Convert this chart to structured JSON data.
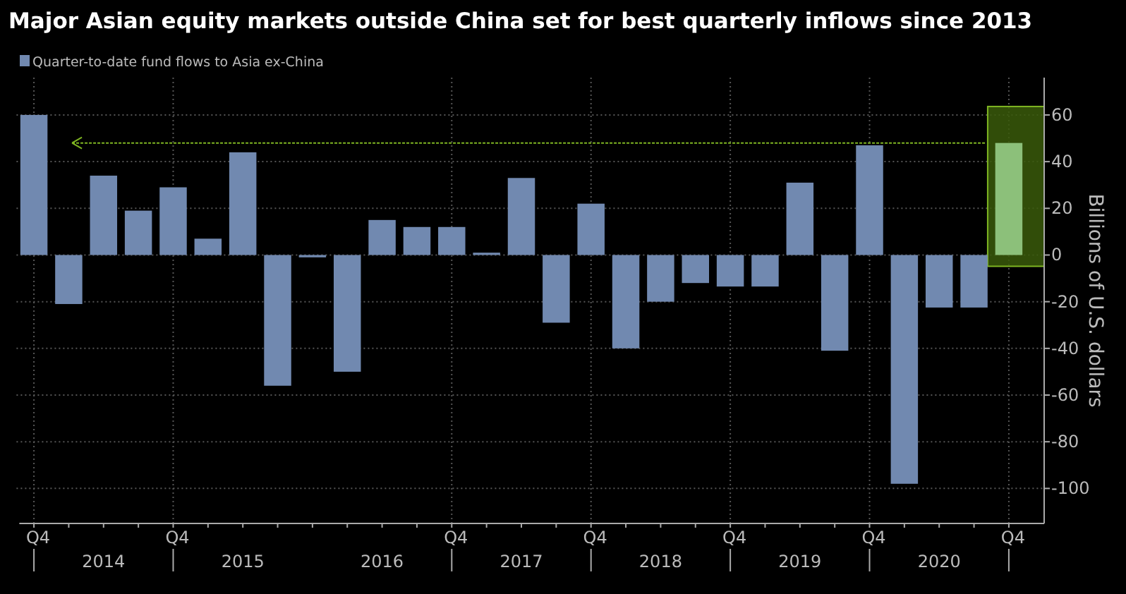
{
  "chart_data": {
    "type": "bar",
    "title": "Major Asian equity markets outside China set for best quarterly inflows since 2013",
    "ylabel": "Billions of U.S. dollars",
    "categories": [
      "Q4",
      null,
      null,
      null,
      "Q4",
      null,
      null,
      null,
      null,
      null,
      null,
      null,
      "Q4",
      null,
      null,
      null,
      "Q4",
      null,
      null,
      null,
      "Q4",
      null,
      null,
      null,
      "Q4",
      null,
      null,
      null,
      "Q4"
    ],
    "series": [
      {
        "name": "Quarter-to-date fund flows to Asia ex-China",
        "color": "#7189b0",
        "colors": [
          "#7189b0",
          "#7189b0",
          "#7189b0",
          "#7189b0",
          "#7189b0",
          "#7189b0",
          "#7189b0",
          "#7189b0",
          "#7189b0",
          "#7189b0",
          "#7189b0",
          "#7189b0",
          "#7189b0",
          "#7189b0",
          "#7189b0",
          "#7189b0",
          "#7189b0",
          "#7189b0",
          "#7189b0",
          "#7189b0",
          "#7189b0",
          "#7189b0",
          "#7189b0",
          "#7189b0",
          "#7189b0",
          "#7189b0",
          "#7189b0",
          "#7189b0",
          "#8cc07a"
        ],
        "values": [
          60,
          -21,
          34,
          19,
          29,
          7,
          44,
          -56,
          -1,
          -50,
          15,
          12,
          12,
          1,
          33,
          -29,
          22,
          -40,
          -20,
          -12,
          -13.5,
          -13.5,
          31,
          -41,
          47,
          -98,
          -22.5,
          -22.5,
          48
        ]
      }
    ],
    "annotations": [
      "2014",
      "2015",
      "2016",
      "2017",
      "2018",
      "2019",
      "2020"
    ],
    "ylim": [
      -115,
      76
    ],
    "yticks": [
      -100,
      -80,
      -60,
      -40,
      -20,
      0,
      20,
      40,
      60
    ],
    "ref_lines": [
      {
        "axis": "y",
        "value": 48,
        "color": "#7fb522",
        "line_style": "dotted"
      }
    ],
    "grid": true,
    "legend": "top left"
  }
}
